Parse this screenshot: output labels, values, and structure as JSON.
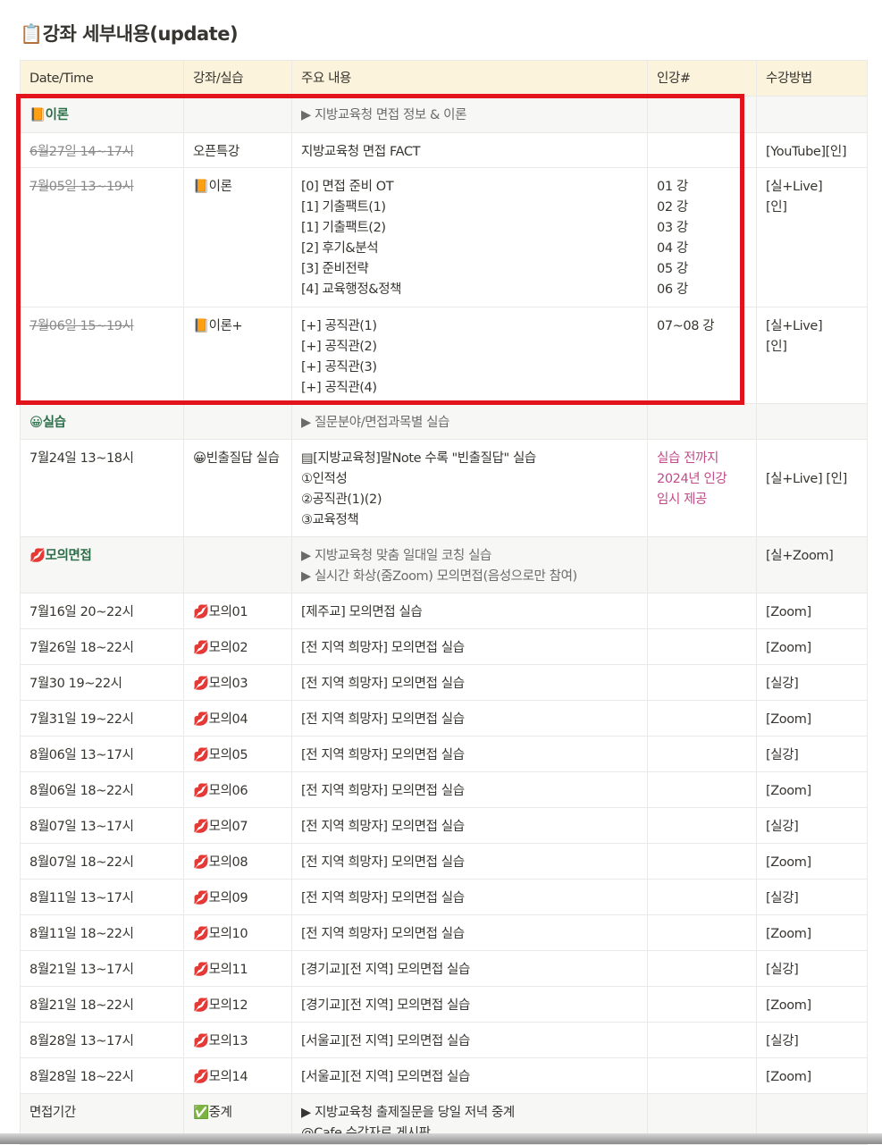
{
  "title": "📋강좌 세부내용(update)",
  "columns": [
    "Date/Time",
    "강좌/실습",
    "주요 내용",
    "인강#",
    "수강방법"
  ],
  "rows": [
    {
      "type": "section",
      "date": "📙이론",
      "kind": "",
      "content": [
        "▶ 지방교육청 면접 정보 & 이론"
      ],
      "lecture": [],
      "method": []
    },
    {
      "type": "row",
      "strike": true,
      "date": "6월27일 14~17시",
      "kind": "오픈특강",
      "content": [
        "지방교육청 면접 FACT"
      ],
      "lecture": [],
      "method": [
        "[YouTube][인]"
      ]
    },
    {
      "type": "row",
      "strike": true,
      "date": "7월05일 13~19시",
      "kind": "📙이론",
      "content": [
        "[0] 면접 준비 OT",
        "[1] 기출팩트(1)",
        "[1] 기출팩트(2)",
        "[2] 후기&분석",
        "[3] 준비전략",
        "[4] 교육행정&정책"
      ],
      "lecture": [
        "01 강",
        "02 강",
        "03 강",
        "04 강",
        "05 강",
        "06 강"
      ],
      "method": [
        "[실+Live]",
        "[인]"
      ]
    },
    {
      "type": "row",
      "strike": true,
      "date": "7월06일 15~19시",
      "kind": "📙이론+",
      "content": [
        "[+] 공직관(1)",
        "[+] 공직관(2)",
        "[+] 공직관(3)",
        "[+] 공직관(4)"
      ],
      "lecture": [
        "07~08 강"
      ],
      "method": [
        "[실+Live]",
        "[인]"
      ]
    },
    {
      "type": "section",
      "date": "😀실습",
      "kind": "",
      "content": [
        "▶ 질문분야/면접과목별 실습"
      ],
      "lecture": [],
      "method": []
    },
    {
      "type": "row",
      "date": "7월24일 13~18시",
      "kind": "😀빈출질답 실습",
      "content": [
        "▤[지방교육청]말Note 수록 \"빈출질답\" 실습",
        "①인적성",
        "②공직관(1)(2)",
        "③교육정책"
      ],
      "lecture": [
        "실습 전까지",
        "2024년 인강",
        "임시 제공"
      ],
      "lecturePink": true,
      "method": [
        "",
        "[실+Live] [인]"
      ]
    },
    {
      "type": "section",
      "date": "💋모의면접",
      "kind": "",
      "content": [
        "▶ 지방교육청 맞춤 일대일 코칭 실습",
        "▶ 실시간 화상(줌Zoom) 모의면접(음성으로만 참여)"
      ],
      "lecture": [],
      "method": [
        "[실+Zoom]"
      ]
    },
    {
      "type": "row",
      "date": "7월16일 20~22시",
      "kind": "💋모의01",
      "content": [
        "[제주교] 모의면접 실습"
      ],
      "lecture": [],
      "method": [
        "[Zoom]"
      ]
    },
    {
      "type": "row",
      "date": "7월26일 18~22시",
      "kind": "💋모의02",
      "content": [
        "[전 지역 희망자] 모의면접 실습"
      ],
      "lecture": [],
      "method": [
        "[Zoom]"
      ]
    },
    {
      "type": "row",
      "date": "7월30 19~22시",
      "kind": "💋모의03",
      "content": [
        "[전 지역 희망자] 모의면접 실습"
      ],
      "lecture": [],
      "method": [
        "[실강]"
      ]
    },
    {
      "type": "row",
      "date": "7월31일 19~22시",
      "kind": "💋모의04",
      "content": [
        "[전 지역 희망자] 모의면접 실습"
      ],
      "lecture": [],
      "method": [
        "[Zoom]"
      ]
    },
    {
      "type": "row",
      "date": "8월06일 13~17시",
      "kind": "💋모의05",
      "content": [
        "[전 지역 희망자] 모의면접 실습"
      ],
      "lecture": [],
      "method": [
        "[실강]"
      ]
    },
    {
      "type": "row",
      "date": "8월06일 18~22시",
      "kind": "💋모의06",
      "content": [
        "[전 지역 희망자] 모의면접 실습"
      ],
      "lecture": [],
      "method": [
        "[Zoom]"
      ]
    },
    {
      "type": "row",
      "date": "8월07일 13~17시",
      "kind": "💋모의07",
      "content": [
        "[전 지역 희망자] 모의면접 실습"
      ],
      "lecture": [],
      "method": [
        "[실강]"
      ]
    },
    {
      "type": "row",
      "date": "8월07일 18~22시",
      "kind": "💋모의08",
      "content": [
        "[전 지역 희망자] 모의면접 실습"
      ],
      "lecture": [],
      "method": [
        "[Zoom]"
      ]
    },
    {
      "type": "row",
      "date": "8월11일 13~17시",
      "kind": "💋모의09",
      "content": [
        "[전 지역 희망자] 모의면접 실습"
      ],
      "lecture": [],
      "method": [
        "[실강]"
      ]
    },
    {
      "type": "row",
      "date": "8월11일 18~22시",
      "kind": "💋모의10",
      "content": [
        "[전 지역 희망자] 모의면접 실습"
      ],
      "lecture": [],
      "method": [
        "[Zoom]"
      ]
    },
    {
      "type": "row",
      "date": "8월21일 13~17시",
      "kind": "💋모의11",
      "content": [
        "[경기교][전 지역] 모의면접 실습"
      ],
      "lecture": [],
      "method": [
        "[실강]"
      ]
    },
    {
      "type": "row",
      "date": "8월21일 18~22시",
      "kind": "💋모의12",
      "content": [
        "[경기교][전 지역] 모의면접 실습"
      ],
      "lecture": [],
      "method": [
        "[Zoom]"
      ]
    },
    {
      "type": "row",
      "date": "8월28일 13~17시",
      "kind": "💋모의13",
      "content": [
        "[서울교][전 지역] 모의면접 실습"
      ],
      "lecture": [],
      "method": [
        "[실강]"
      ]
    },
    {
      "type": "row",
      "date": "8월28일 18~22시",
      "kind": "💋모의14",
      "content": [
        "[서울교][전 지역] 모의면접 실습"
      ],
      "lecture": [],
      "method": [
        "[Zoom]"
      ]
    },
    {
      "type": "section",
      "plain": true,
      "date": "면접기간",
      "kind": "✅중계",
      "content": [
        "▶ 지방교육청 출제질문을 당일 저녁 중계",
        "@Cafe 수강자료 게시판"
      ],
      "lecture": [],
      "method": []
    }
  ],
  "colors": {
    "highlight_box": "#e3131b",
    "header_bg": "#fbf3db",
    "section_text": "#2c6e49",
    "pink_text": "#c14c8a"
  }
}
